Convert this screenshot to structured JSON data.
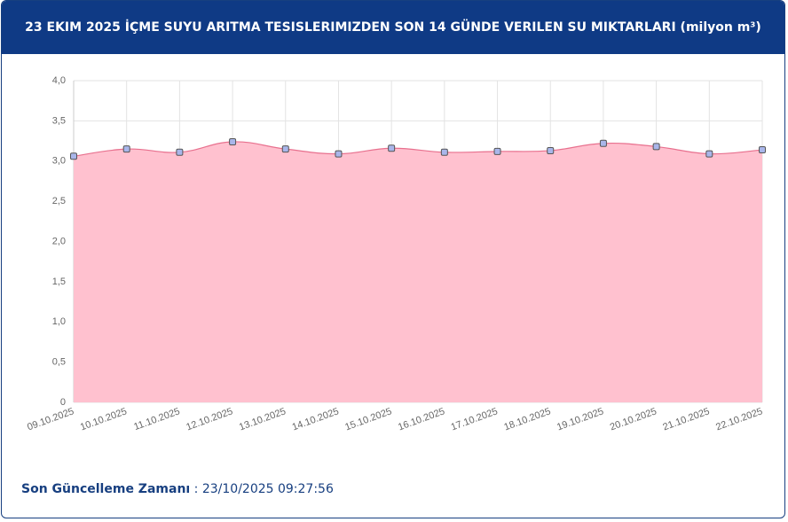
{
  "chart_data": {
    "type": "area",
    "title": "23 EKIM 2025 İÇME SUYU ARITMA TESISLERIMIZDEN SON 14 GÜNDE VERILEN SU MIKTARLARI (milyon m³)",
    "categories": [
      "09.10.2025",
      "10.10.2025",
      "11.10.2025",
      "12.10.2025",
      "13.10.2025",
      "14.10.2025",
      "15.10.2025",
      "16.10.2025",
      "17.10.2025",
      "18.10.2025",
      "19.10.2025",
      "20.10.2025",
      "21.10.2025",
      "22.10.2025"
    ],
    "values": [
      3.06,
      3.15,
      3.11,
      3.24,
      3.15,
      3.09,
      3.16,
      3.11,
      3.12,
      3.13,
      3.22,
      3.18,
      3.09,
      3.14
    ],
    "color": "#e8708e",
    "fill_color": "#ffc1cf",
    "marker_color": "#a9b6ea",
    "ylim": [
      0,
      4
    ],
    "yticks": [
      0,
      {
        "value": 0.5,
        "label": "0,5"
      },
      {
        "value": 1,
        "label": "1,0"
      },
      {
        "value": 1.5,
        "label": "1,5"
      },
      {
        "value": 2,
        "label": "2,0"
      },
      {
        "value": 2.5,
        "label": "2,5"
      },
      {
        "value": 3,
        "label": "3,0"
      },
      {
        "value": 3.5,
        "label": "3,5"
      },
      {
        "value": 4,
        "label": "4,0"
      }
    ],
    "grid": true
  },
  "footer": {
    "label": "Son Güncelleme Zamanı",
    "value": "23/10/2025 09:27:56"
  }
}
